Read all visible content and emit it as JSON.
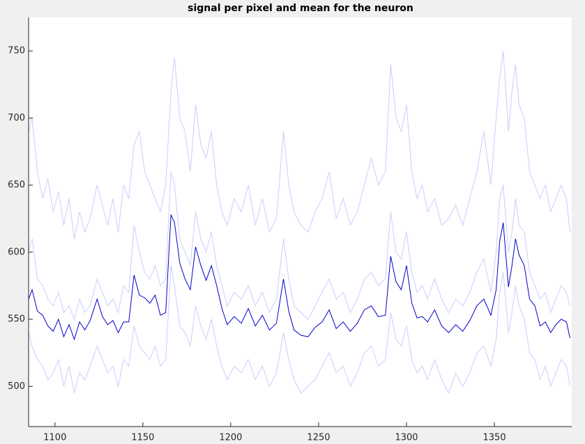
{
  "chart_data": {
    "type": "line",
    "title": "signal per pixel and mean for the neuron",
    "x": [
      1085,
      1087,
      1090,
      1093,
      1096,
      1099,
      1102,
      1105,
      1108,
      1111,
      1114,
      1117,
      1120,
      1124,
      1127,
      1130,
      1133,
      1136,
      1139,
      1142,
      1145,
      1148,
      1151,
      1154,
      1157,
      1160,
      1163,
      1166,
      1168,
      1171,
      1174,
      1177,
      1180,
      1183,
      1186,
      1189,
      1192,
      1195,
      1198,
      1202,
      1206,
      1210,
      1214,
      1218,
      1222,
      1226,
      1230,
      1233,
      1236,
      1240,
      1244,
      1248,
      1252,
      1256,
      1260,
      1264,
      1268,
      1272,
      1276,
      1280,
      1284,
      1288,
      1291,
      1294,
      1297,
      1300,
      1303,
      1306,
      1309,
      1312,
      1316,
      1320,
      1324,
      1328,
      1332,
      1336,
      1340,
      1344,
      1348,
      1351,
      1353,
      1355,
      1358,
      1360,
      1362,
      1364,
      1367,
      1370,
      1373,
      1376,
      1379,
      1382,
      1385,
      1388,
      1391,
      1393
    ],
    "series": [
      {
        "color": "#ccccff",
        "values": [
          690,
          700,
          660,
          640,
          655,
          630,
          645,
          620,
          640,
          610,
          630,
          615,
          625,
          650,
          635,
          620,
          640,
          615,
          650,
          640,
          680,
          690,
          660,
          650,
          640,
          630,
          650,
          720,
          745,
          700,
          690,
          660,
          710,
          680,
          670,
          690,
          650,
          630,
          620,
          640,
          630,
          650,
          620,
          640,
          615,
          625,
          690,
          650,
          630,
          620,
          615,
          630,
          640,
          660,
          625,
          640,
          620,
          630,
          650,
          670,
          650,
          660,
          740,
          700,
          690,
          710,
          660,
          640,
          650,
          630,
          640,
          620,
          625,
          635,
          620,
          640,
          660,
          690,
          650,
          700,
          730,
          750,
          690,
          720,
          740,
          710,
          700,
          660,
          650,
          640,
          650,
          630,
          640,
          650,
          640,
          615
        ]
      },
      {
        "color": "#ccccff",
        "values": [
          600,
          610,
          580,
          575,
          565,
          560,
          570,
          555,
          560,
          550,
          565,
          555,
          560,
          580,
          570,
          560,
          565,
          555,
          575,
          570,
          620,
          600,
          585,
          580,
          590,
          575,
          580,
          660,
          650,
          610,
          600,
          590,
          630,
          610,
          600,
          615,
          590,
          575,
          560,
          570,
          565,
          575,
          560,
          570,
          555,
          565,
          610,
          580,
          560,
          555,
          550,
          560,
          570,
          580,
          565,
          570,
          555,
          565,
          580,
          585,
          575,
          580,
          630,
          600,
          595,
          615,
          585,
          570,
          575,
          565,
          580,
          565,
          555,
          565,
          560,
          570,
          585,
          595,
          570,
          600,
          640,
          650,
          600,
          615,
          640,
          620,
          615,
          585,
          575,
          565,
          570,
          555,
          565,
          575,
          570,
          560
        ]
      },
      {
        "color": "#ccccff",
        "values": [
          540,
          530,
          520,
          515,
          505,
          510,
          520,
          500,
          515,
          495,
          510,
          505,
          515,
          530,
          520,
          510,
          515,
          500,
          520,
          515,
          545,
          530,
          525,
          520,
          530,
          515,
          520,
          590,
          575,
          545,
          540,
          530,
          560,
          545,
          535,
          550,
          530,
          515,
          505,
          515,
          510,
          520,
          505,
          515,
          500,
          510,
          540,
          520,
          505,
          495,
          500,
          505,
          515,
          525,
          510,
          515,
          500,
          510,
          525,
          530,
          515,
          520,
          555,
          535,
          530,
          545,
          520,
          510,
          515,
          505,
          520,
          505,
          495,
          510,
          500,
          510,
          525,
          530,
          515,
          535,
          570,
          585,
          540,
          555,
          575,
          560,
          550,
          525,
          520,
          505,
          515,
          500,
          510,
          520,
          515,
          500
        ]
      },
      {
        "color": "#0000cc",
        "values": [
          565,
          572,
          556,
          553,
          545,
          541,
          550,
          537,
          546,
          535,
          548,
          542,
          549,
          565,
          552,
          546,
          549,
          540,
          548,
          548,
          583,
          568,
          566,
          562,
          568,
          553,
          555,
          628,
          622,
          592,
          580,
          572,
          604,
          590,
          579,
          590,
          575,
          558,
          546,
          552,
          547,
          558,
          545,
          553,
          542,
          547,
          580,
          556,
          542,
          538,
          537,
          544,
          548,
          557,
          543,
          548,
          541,
          547,
          557,
          560,
          552,
          553,
          597,
          578,
          572,
          590,
          562,
          551,
          552,
          548,
          557,
          545,
          540,
          546,
          541,
          549,
          560,
          565,
          553,
          572,
          608,
          622,
          574,
          590,
          610,
          598,
          590,
          565,
          560,
          545,
          548,
          540,
          546,
          550,
          548,
          536
        ]
      }
    ],
    "xlim": [
      1085,
      1394
    ],
    "ylim": [
      470,
      775
    ],
    "xticks": [
      1100,
      1150,
      1200,
      1250,
      1300,
      1350
    ],
    "yticks": [
      500,
      550,
      600,
      650,
      700,
      750
    ],
    "grid": false
  }
}
